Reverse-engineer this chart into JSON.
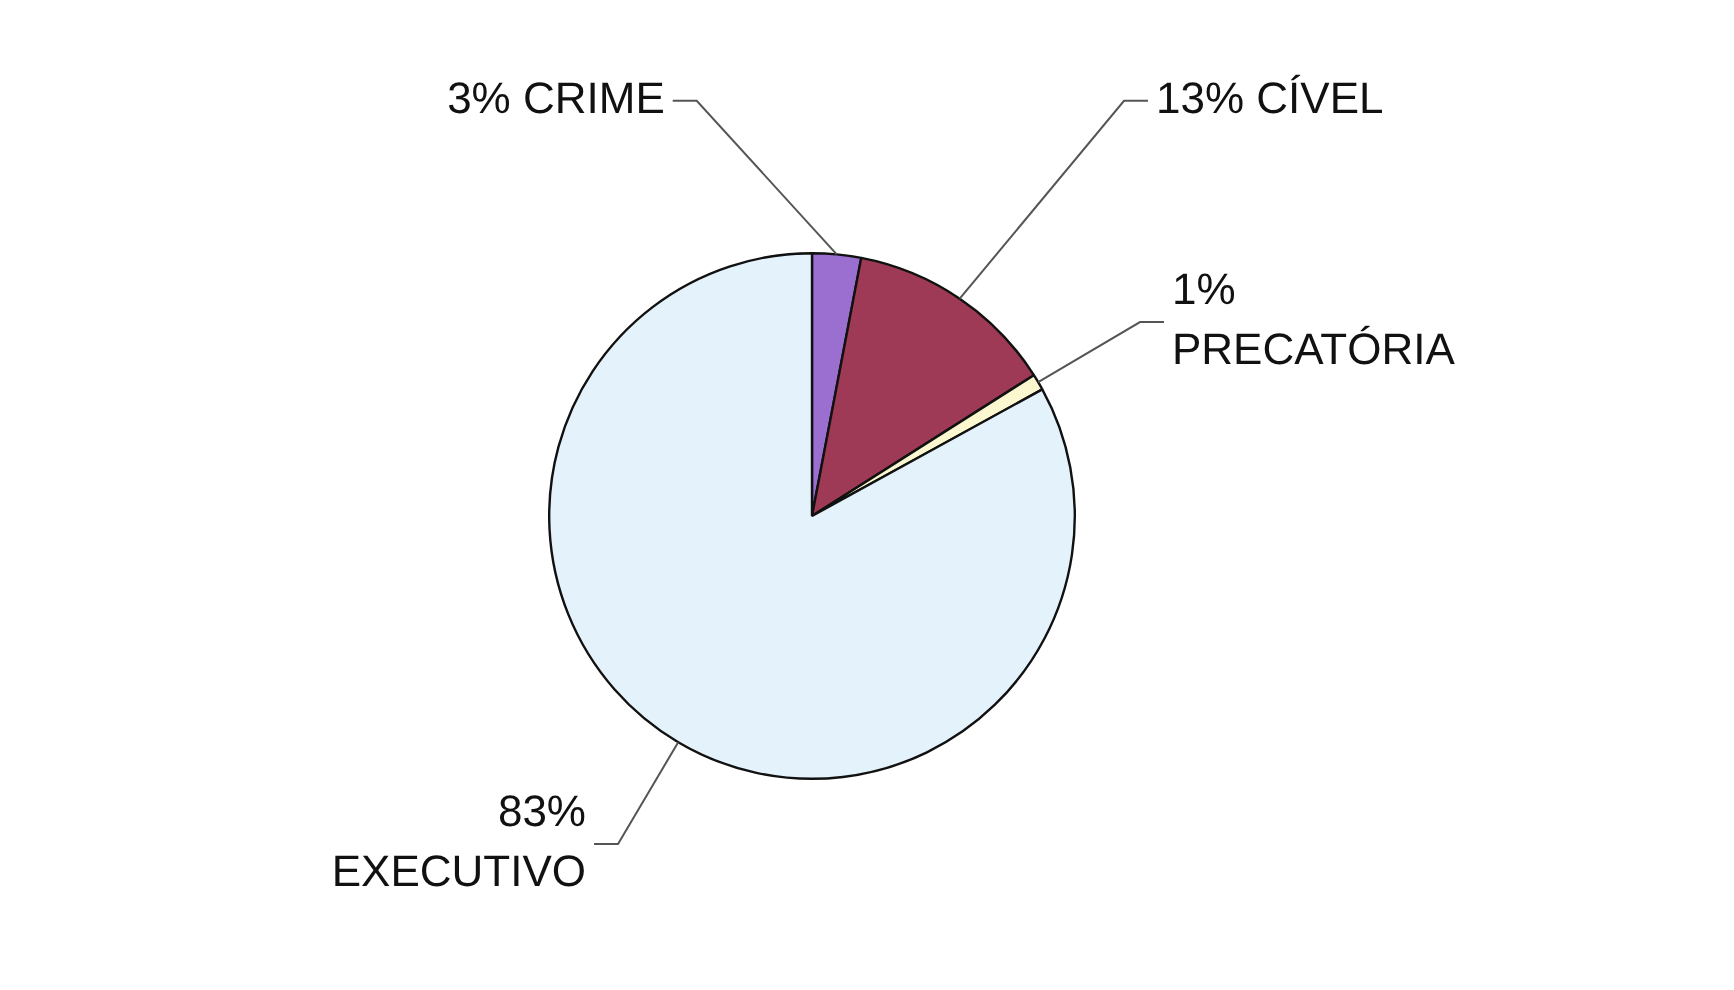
{
  "chart_data": {
    "type": "pie",
    "categories": [
      "CRIME",
      "CÍVEL",
      "PRECATÓRIA",
      "EXECUTIVO"
    ],
    "values": [
      3,
      13,
      1,
      83
    ],
    "value_labels": [
      "3%",
      "13%",
      "1%",
      "83%"
    ],
    "colors": [
      "#9a6fd0",
      "#9e3a55",
      "#fbf8d0",
      "#e4f2fb"
    ],
    "legend": false
  }
}
